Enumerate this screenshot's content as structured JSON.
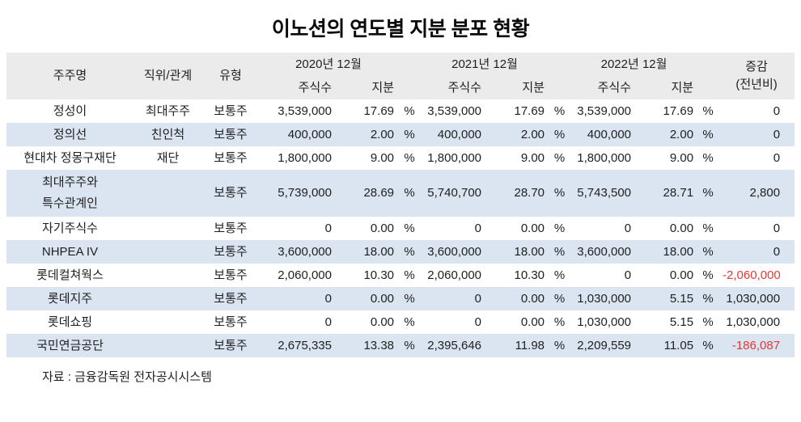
{
  "title": "이노션의 연도별 지분 분포 현황",
  "source_note": "자료 : 금융감독원 전자공시시스템",
  "colors": {
    "header_bg": "#ebebeb",
    "stripe_bg": "#dbe5f1",
    "negative_text": "#e53935",
    "text": "#1f1f1f"
  },
  "table": {
    "headers": {
      "shareholder": "주주명",
      "relation": "직위/관계",
      "type": "유형",
      "periods": [
        "2020년 12월",
        "2021년 12월",
        "2022년 12월"
      ],
      "shares_label": "주식수",
      "stake_label": "지분",
      "change_line1": "증감",
      "change_line2": "(전년비)",
      "percent_sign": "%"
    },
    "rows": [
      {
        "name": "정성이",
        "relation": "최대주주",
        "type": "보통주",
        "y2020_shares": "3,539,000",
        "y2020_stake": "17.69",
        "y2021_shares": "3,539,000",
        "y2021_stake": "17.69",
        "y2022_shares": "3,539,000",
        "y2022_stake": "17.69",
        "change": "0",
        "negative": false,
        "tall": false
      },
      {
        "name": "정의선",
        "relation": "친인척",
        "type": "보통주",
        "y2020_shares": "400,000",
        "y2020_stake": "2.00",
        "y2021_shares": "400,000",
        "y2021_stake": "2.00",
        "y2022_shares": "400,000",
        "y2022_stake": "2.00",
        "change": "0",
        "negative": false,
        "tall": false
      },
      {
        "name": "현대차 정몽구재단",
        "relation": "재단",
        "type": "보통주",
        "y2020_shares": "1,800,000",
        "y2020_stake": "9.00",
        "y2021_shares": "1,800,000",
        "y2021_stake": "9.00",
        "y2022_shares": "1,800,000",
        "y2022_stake": "9.00",
        "change": "0",
        "negative": false,
        "tall": false
      },
      {
        "name": "최대주주와\n특수관계인",
        "relation": "",
        "type": "보통주",
        "y2020_shares": "5,739,000",
        "y2020_stake": "28.69",
        "y2021_shares": "5,740,700",
        "y2021_stake": "28.70",
        "y2022_shares": "5,743,500",
        "y2022_stake": "28.71",
        "change": "2,800",
        "negative": false,
        "tall": true
      },
      {
        "name": "자기주식수",
        "relation": "",
        "type": "보통주",
        "y2020_shares": "0",
        "y2020_stake": "0.00",
        "y2021_shares": "0",
        "y2021_stake": "0.00",
        "y2022_shares": "0",
        "y2022_stake": "0.00",
        "change": "0",
        "negative": false,
        "tall": false
      },
      {
        "name": "NHPEA IV",
        "relation": "",
        "type": "보통주",
        "y2020_shares": "3,600,000",
        "y2020_stake": "18.00",
        "y2021_shares": "3,600,000",
        "y2021_stake": "18.00",
        "y2022_shares": "3,600,000",
        "y2022_stake": "18.00",
        "change": "0",
        "negative": false,
        "tall": false
      },
      {
        "name": "롯데컬쳐웍스",
        "relation": "",
        "type": "보통주",
        "y2020_shares": "2,060,000",
        "y2020_stake": "10.30",
        "y2021_shares": "2,060,000",
        "y2021_stake": "10.30",
        "y2022_shares": "0",
        "y2022_stake": "0.00",
        "change": "-2,060,000",
        "negative": true,
        "tall": false
      },
      {
        "name": "롯데지주",
        "relation": "",
        "type": "보통주",
        "y2020_shares": "0",
        "y2020_stake": "0.00",
        "y2021_shares": "0",
        "y2021_stake": "0.00",
        "y2022_shares": "1,030,000",
        "y2022_stake": "5.15",
        "change": "1,030,000",
        "negative": false,
        "tall": false
      },
      {
        "name": "롯데쇼핑",
        "relation": "",
        "type": "보통주",
        "y2020_shares": "0",
        "y2020_stake": "0.00",
        "y2021_shares": "0",
        "y2021_stake": "0.00",
        "y2022_shares": "1,030,000",
        "y2022_stake": "5.15",
        "change": "1,030,000",
        "negative": false,
        "tall": false
      },
      {
        "name": "국민연금공단",
        "relation": "",
        "type": "보통주",
        "y2020_shares": "2,675,335",
        "y2020_stake": "13.38",
        "y2021_shares": "2,395,646",
        "y2021_stake": "11.98",
        "y2022_shares": "2,209,559",
        "y2022_stake": "11.05",
        "change": "-186,087",
        "negative": true,
        "tall": false
      }
    ]
  },
  "chart_data": {
    "type": "table",
    "title": "이노션의 연도별 지분 분포 현황",
    "columns": [
      "주주명",
      "직위/관계",
      "유형",
      "2020년 12월 주식수",
      "2020년 12월 지분(%)",
      "2021년 12월 주식수",
      "2021년 12월 지분(%)",
      "2022년 12월 주식수",
      "2022년 12월 지분(%)",
      "증감(전년비)"
    ],
    "rows": [
      [
        "정성이",
        "최대주주",
        "보통주",
        3539000,
        17.69,
        3539000,
        17.69,
        3539000,
        17.69,
        0
      ],
      [
        "정의선",
        "친인척",
        "보통주",
        400000,
        2.0,
        400000,
        2.0,
        400000,
        2.0,
        0
      ],
      [
        "현대차 정몽구재단",
        "재단",
        "보통주",
        1800000,
        9.0,
        1800000,
        9.0,
        1800000,
        9.0,
        0
      ],
      [
        "최대주주와 특수관계인",
        "",
        "보통주",
        5739000,
        28.69,
        5740700,
        28.7,
        5743500,
        28.71,
        2800
      ],
      [
        "자기주식수",
        "",
        "보통주",
        0,
        0.0,
        0,
        0.0,
        0,
        0.0,
        0
      ],
      [
        "NHPEA IV",
        "",
        "보통주",
        3600000,
        18.0,
        3600000,
        18.0,
        3600000,
        18.0,
        0
      ],
      [
        "롯데컬쳐웍스",
        "",
        "보통주",
        2060000,
        10.3,
        2060000,
        10.3,
        0,
        0.0,
        -2060000
      ],
      [
        "롯데지주",
        "",
        "보통주",
        0,
        0.0,
        0,
        0.0,
        1030000,
        5.15,
        1030000
      ],
      [
        "롯데쇼핑",
        "",
        "보통주",
        0,
        0.0,
        0,
        0.0,
        1030000,
        5.15,
        1030000
      ],
      [
        "국민연금공단",
        "",
        "보통주",
        2675335,
        13.38,
        2395646,
        11.98,
        2209559,
        11.05,
        -186087
      ]
    ],
    "source": "자료 : 금융감독원 전자공시시스템"
  }
}
